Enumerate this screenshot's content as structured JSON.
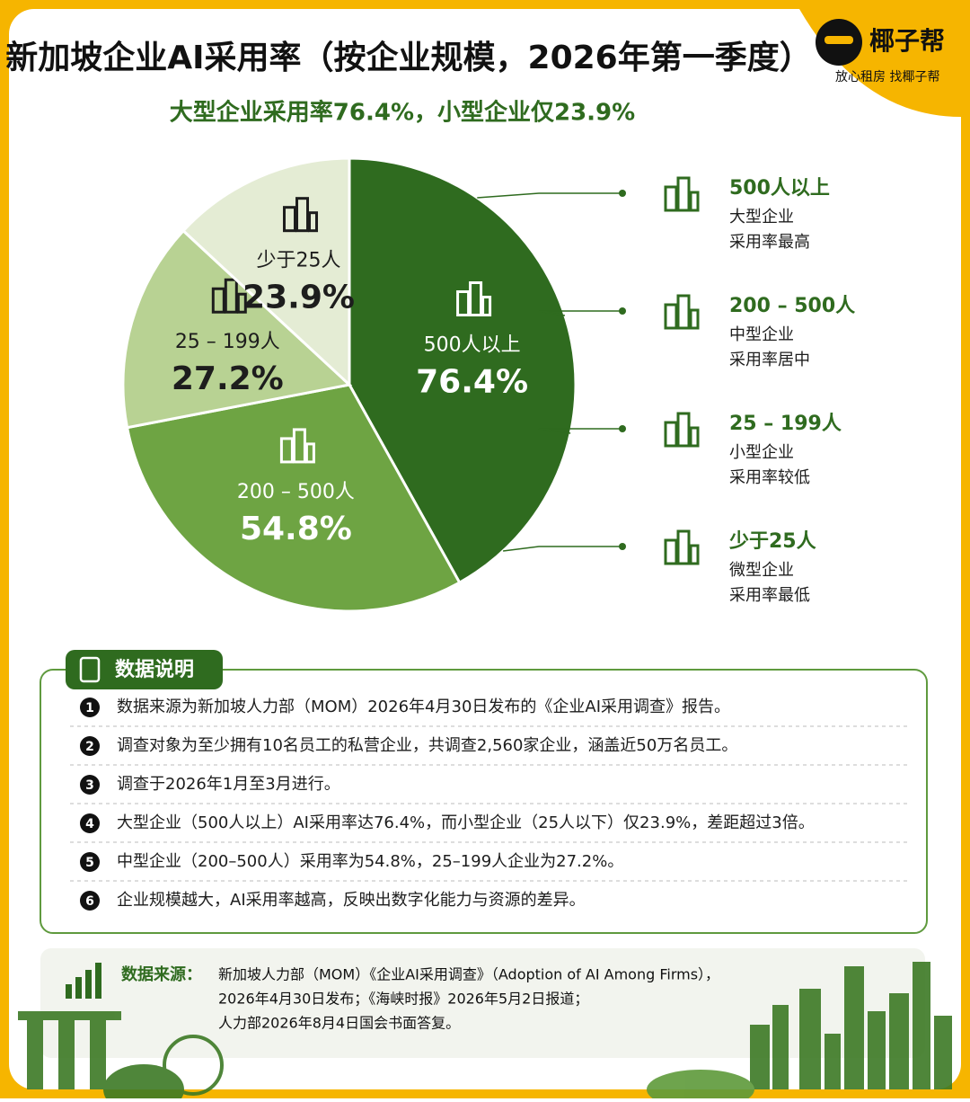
{
  "brand": {
    "name": "椰子帮",
    "tagline": "放心租房  找椰子帮"
  },
  "chart_data": {
    "type": "pie",
    "title": "新加坡企业AI采用率（按企业规模，2026年第一季度）",
    "subtitle": "大型企业采用率76.4%，小型企业仅23.9%",
    "categories": [
      "500人以上",
      "200 – 500人",
      "25 – 199人",
      "少于25人"
    ],
    "values": [
      76.4,
      54.8,
      27.2,
      23.9
    ],
    "value_labels": [
      "76.4%",
      "54.8%",
      "27.2%",
      "23.9%"
    ],
    "colors": [
      "#2f6b1f",
      "#6ea443",
      "#b8d293",
      "#e4ecd4"
    ],
    "legend_notes": [
      [
        "大型企业",
        "采用率最高"
      ],
      [
        "中型企业",
        "采用率居中"
      ],
      [
        "小型企业",
        "采用率较低"
      ],
      [
        "微型企业",
        "采用率最低"
      ]
    ]
  },
  "notes": {
    "heading": "数据说明",
    "items": [
      {
        "index": "1",
        "text": "数据来源为新加坡人力部（MOM）2026年4月30日发布的《企业AI采用调查》报告。"
      },
      {
        "index": "2",
        "text": "调查对象为至少拥有10名员工的私营企业，共调查2,560家企业，涵盖近50万名员工。"
      },
      {
        "index": "3",
        "text": "调查于2026年1月至3月进行。"
      },
      {
        "index": "4",
        "text": "大型企业（500人以上）AI采用率达76.4%，而小型企业（25人以下）仅23.9%，差距超过3倍。"
      },
      {
        "index": "5",
        "text": "中型企业（200–500人）采用率为54.8%，25–199人企业为27.2%。"
      },
      {
        "index": "6",
        "text": "企业规模越大，AI采用率越高，反映出数字化能力与资源的差异。"
      }
    ]
  },
  "source": {
    "label": "数据来源：",
    "lines": [
      "新加坡人力部（MOM）《企业AI采用调查》（Adoption of AI Among Firms），",
      "2026年4月30日发布；《海峡时报》2026年5月2日报道；",
      "人力部2026年8月4日国会书面答复。"
    ]
  }
}
